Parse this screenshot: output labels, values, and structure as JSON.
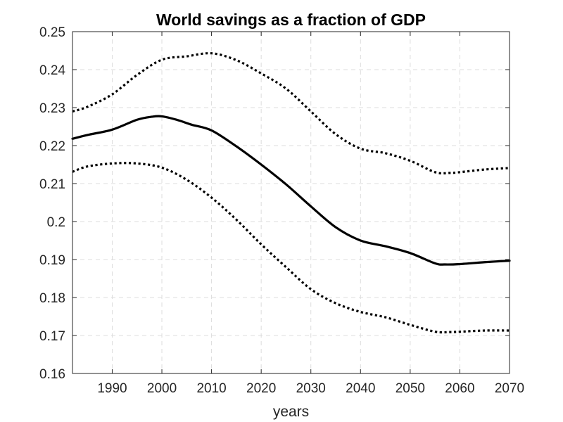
{
  "chart_data": {
    "type": "line",
    "title": "World savings as a fraction of GDP",
    "xlabel": "years",
    "ylabel": "",
    "xlim": [
      1982,
      2070
    ],
    "ylim": [
      0.16,
      0.25
    ],
    "xticks": [
      1990,
      2000,
      2010,
      2020,
      2030,
      2040,
      2050,
      2060,
      2070
    ],
    "xtick_labels": [
      "1990",
      "2000",
      "2010",
      "2020",
      "2030",
      "2040",
      "2050",
      "2060",
      "2070"
    ],
    "yticks": [
      0.16,
      0.17,
      0.18,
      0.19,
      0.2,
      0.21,
      0.22,
      0.23,
      0.24,
      0.25
    ],
    "ytick_labels": [
      "0.16",
      "0.17",
      "0.18",
      "0.19",
      "0.2",
      "0.21",
      "0.22",
      "0.23",
      "0.24",
      "0.25"
    ],
    "grid": true,
    "series": [
      {
        "style": "solid",
        "color": "#000000",
        "x": [
          1982,
          1985,
          1990,
          1995,
          1998,
          2000,
          2003,
          2006,
          2010,
          2015,
          2020,
          2025,
          2030,
          2035,
          2040,
          2045,
          2050,
          2055,
          2057,
          2060,
          2065,
          2070
        ],
        "y": [
          0.2218,
          0.2228,
          0.2242,
          0.2268,
          0.2276,
          0.2277,
          0.2268,
          0.2255,
          0.224,
          0.2198,
          0.215,
          0.2098,
          0.204,
          0.1985,
          0.195,
          0.1935,
          0.1917,
          0.189,
          0.1887,
          0.1888,
          0.1893,
          0.1897
        ]
      },
      {
        "style": "dotted",
        "color": "#000000",
        "x": [
          1982,
          1985,
          1990,
          1995,
          2000,
          2005,
          2010,
          2015,
          2020,
          2025,
          2030,
          2035,
          2040,
          2045,
          2050,
          2055,
          2058,
          2060,
          2065,
          2070
        ],
        "y": [
          0.229,
          0.2302,
          0.2335,
          0.2386,
          0.2426,
          0.2435,
          0.2443,
          0.2425,
          0.239,
          0.235,
          0.229,
          0.223,
          0.2192,
          0.218,
          0.216,
          0.213,
          0.2128,
          0.213,
          0.2137,
          0.2141
        ]
      },
      {
        "style": "dotted",
        "color": "#000000",
        "x": [
          1982,
          1985,
          1990,
          1995,
          2000,
          2005,
          2010,
          2015,
          2020,
          2025,
          2030,
          2035,
          2040,
          2045,
          2050,
          2055,
          2058,
          2060,
          2065,
          2070
        ],
        "y": [
          0.2131,
          0.2145,
          0.2153,
          0.2153,
          0.2142,
          0.211,
          0.2063,
          0.2005,
          0.194,
          0.188,
          0.1822,
          0.1785,
          0.1762,
          0.1748,
          0.1728,
          0.171,
          0.1709,
          0.171,
          0.1713,
          0.1713
        ]
      }
    ]
  }
}
